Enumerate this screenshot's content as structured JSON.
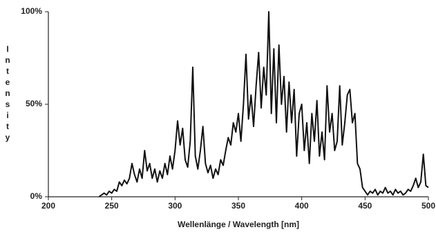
{
  "chart_data": {
    "type": "line",
    "x_label": "Wellenlänge / Wavelength [nm]",
    "y_label": "Intensity",
    "xlim": [
      200,
      500
    ],
    "xticks": [
      200,
      250,
      300,
      350,
      400,
      450,
      500
    ],
    "ylim": [
      0,
      100
    ],
    "yticks": [
      {
        "value": 0,
        "label": "0%"
      },
      {
        "value": 50,
        "label": "50%"
      },
      {
        "value": 100,
        "label": "100%"
      }
    ],
    "color": "#111111",
    "x": [
      240,
      242,
      244,
      246,
      248,
      250,
      252,
      254,
      256,
      258,
      260,
      262,
      264,
      266,
      268,
      270,
      272,
      274,
      276,
      278,
      280,
      282,
      284,
      286,
      288,
      290,
      292,
      294,
      296,
      298,
      300,
      302,
      304,
      306,
      308,
      310,
      312,
      314,
      316,
      318,
      320,
      322,
      324,
      326,
      328,
      330,
      332,
      334,
      336,
      338,
      340,
      342,
      344,
      346,
      348,
      350,
      352,
      354,
      356,
      358,
      360,
      362,
      364,
      366,
      368,
      370,
      372,
      374,
      376,
      378,
      380,
      382,
      384,
      386,
      388,
      390,
      392,
      394,
      396,
      398,
      400,
      402,
      404,
      406,
      408,
      410,
      412,
      414,
      416,
      418,
      420,
      422,
      424,
      426,
      428,
      430,
      432,
      434,
      436,
      438,
      440,
      442,
      444,
      446,
      448,
      450,
      452,
      454,
      456,
      458,
      460,
      462,
      464,
      466,
      468,
      470,
      472,
      474,
      476,
      478,
      480,
      482,
      484,
      486,
      488,
      490,
      492,
      494,
      496,
      498,
      500
    ],
    "values": [
      0,
      1,
      2,
      1,
      3,
      2,
      4,
      3,
      8,
      6,
      9,
      7,
      10,
      18,
      12,
      8,
      15,
      10,
      25,
      14,
      18,
      10,
      15,
      8,
      14,
      10,
      18,
      12,
      22,
      15,
      25,
      41,
      28,
      37,
      20,
      16,
      30,
      70,
      22,
      15,
      25,
      38,
      18,
      13,
      17,
      10,
      15,
      12,
      20,
      17,
      25,
      32,
      28,
      40,
      35,
      45,
      30,
      50,
      77,
      42,
      55,
      38,
      60,
      78,
      48,
      70,
      55,
      100,
      45,
      80,
      40,
      82,
      50,
      65,
      35,
      62,
      40,
      58,
      22,
      45,
      50,
      25,
      40,
      18,
      45,
      30,
      52,
      22,
      35,
      20,
      60,
      35,
      45,
      25,
      30,
      60,
      28,
      40,
      55,
      58,
      40,
      45,
      18,
      15,
      5,
      3,
      1,
      3,
      2,
      4,
      1,
      3,
      2,
      5,
      2,
      3,
      1,
      4,
      2,
      3,
      1,
      2,
      4,
      3,
      6,
      10,
      5,
      8,
      23,
      6,
      5
    ]
  }
}
